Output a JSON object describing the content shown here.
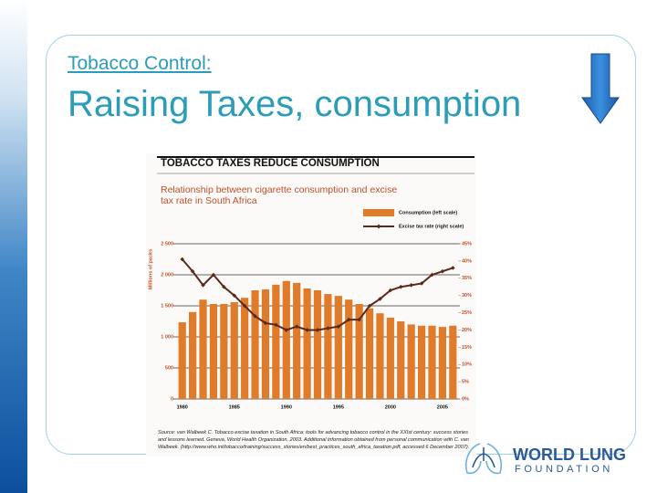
{
  "slide": {
    "subtitle": "Tobacco Control:",
    "title": "Raising Taxes, consumption"
  },
  "logo": {
    "line1": "WORLD LUNG",
    "line2": "FOUNDATION"
  },
  "chart_data": {
    "type": "bar_line",
    "header": "TOBACCO TAXES REDUCE CONSUMPTION",
    "title": "Relationship between cigarette consumption and excise tax rate in South Africa",
    "ylabel": "Millions of packs",
    "source": "Source: van Walbeek C. Tobacco excise taxation in South Africa: tools for advancing tobacco control in the XXIst century: success stories and lessons learned. Geneva, World Health Organization, 2003. Additional information obtained from personal communication with C. van Walbeek. (http://www.who.int/tobacco/training/success_stories/en/best_practices_south_africa_taxation.pdf, accessed 6 December 2007).",
    "categories": [
      "1980",
      null,
      null,
      null,
      null,
      "1985",
      null,
      null,
      null,
      null,
      "1990",
      null,
      null,
      null,
      null,
      "1995",
      null,
      null,
      null,
      null,
      "2000",
      null,
      null,
      null,
      null,
      "2005",
      null
    ],
    "series": [
      {
        "name": "Consumption (left scale)",
        "color": "#e07b2a",
        "kind": "bar",
        "values": [
          1235,
          1400,
          1600,
          1530,
          1530,
          1560,
          1630,
          1750,
          1765,
          1840,
          1900,
          1870,
          1780,
          1750,
          1690,
          1660,
          1600,
          1530,
          1460,
          1380,
          1310,
          1250,
          1200,
          1180,
          1180,
          1160,
          1180
        ]
      },
      {
        "name": "Excise tax rate (right scale)",
        "color": "#5b2a1c",
        "kind": "line",
        "axis": "y2",
        "values": [
          40.5,
          37,
          33,
          36,
          32.5,
          30,
          27,
          24,
          22,
          21.5,
          20,
          21,
          20,
          20,
          20.5,
          21,
          23,
          23,
          27,
          29,
          31.5,
          32.5,
          33,
          33.5,
          36,
          37,
          38
        ]
      }
    ],
    "ylim": [
      0,
      2500
    ],
    "yticks": [
      0,
      500,
      {
        "value": 1000,
        "label": "1 000"
      },
      {
        "value": 1500,
        "label": "1 500"
      },
      {
        "value": 2000,
        "label": "2 000"
      },
      {
        "value": 2500,
        "label": "2 500"
      }
    ],
    "y2lim": [
      0,
      45
    ],
    "y2ticks": [
      {
        "value": 0,
        "label": "0%"
      },
      {
        "value": 5,
        "label": "5%"
      },
      {
        "value": 10,
        "label": "10%"
      },
      {
        "value": 15,
        "label": "15%"
      },
      {
        "value": 20,
        "label": "20%"
      },
      {
        "value": 25,
        "label": "25%"
      },
      {
        "value": 30,
        "label": "30%"
      },
      {
        "value": 35,
        "label": "35%"
      },
      {
        "value": 40,
        "label": "40%"
      },
      {
        "value": 45,
        "label": "45%"
      }
    ],
    "grid": true
  }
}
